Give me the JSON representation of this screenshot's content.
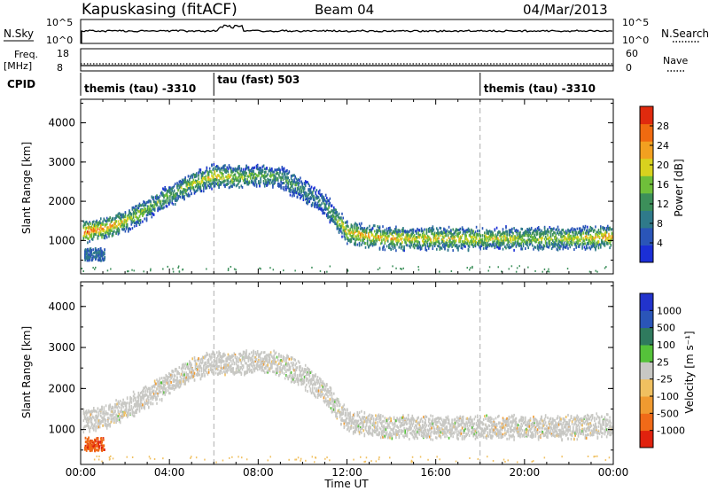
{
  "header": {
    "station": "Kapuskasing (fitACF)",
    "beam": "Beam 04",
    "date": "04/Mar/2013"
  },
  "strip": {
    "nsky_label": "N.Sky",
    "nsky_ticks": [
      "10^5",
      "10^0"
    ],
    "nsearch_label": "N.Search",
    "nsearch_ticks": [
      "10^5",
      "10^0"
    ],
    "freq_label": "Freq.",
    "freq_unit": "[MHz]",
    "freq_ticks": [
      "18",
      "8"
    ],
    "nave_label": "Nave",
    "nave_ticks": [
      "60",
      "0"
    ],
    "cpid_label": "CPID",
    "cpid_segments": [
      {
        "label": "themis (tau) -3310",
        "start": 0.0
      },
      {
        "label": "tau (fast) 503",
        "start": 6.0
      },
      {
        "label": "themis (tau) -3310",
        "start": 18.0
      }
    ]
  },
  "colors": {
    "power_scale": [
      "#1b2fd6",
      "#2a55b8",
      "#2f7a8a",
      "#3c8f5a",
      "#6fbf3a",
      "#d8d21e",
      "#f2a020",
      "#f06a10",
      "#e02a0e"
    ],
    "velocity_scale": [
      "#2233cc",
      "#2a55b8",
      "#2f7a5e",
      "#55c23a",
      "#c8c8c4",
      "#f0c060",
      "#f09a30",
      "#f06a18",
      "#e0220e"
    ]
  },
  "chart_data": [
    {
      "type": "heatmap",
      "title": "Power",
      "ylabel": "Slant Range [km]",
      "xlabel": "Time UT",
      "xlim": [
        0,
        24
      ],
      "ylim": [
        150,
        4600
      ],
      "xticks": [
        "00:00",
        "04:00",
        "08:00",
        "12:00",
        "16:00",
        "20:00",
        "00:00"
      ],
      "yticks": [
        1000,
        2000,
        3000,
        4000
      ],
      "colorbar_label": "Power [dB]",
      "colorbar_ticks": [
        "28",
        "24",
        "20",
        "16",
        "12",
        "8",
        "4"
      ],
      "scatter_band": {
        "time_hours": [
          0.0,
          1.0,
          2.0,
          3.0,
          4.0,
          5.0,
          6.0,
          7.0,
          8.0,
          9.0,
          10.0,
          11.0,
          12.0,
          13.0,
          14.0,
          16.0,
          18.0,
          20.0,
          22.0,
          24.0
        ],
        "center_range_km": [
          1200,
          1300,
          1500,
          1800,
          2150,
          2450,
          2650,
          2600,
          2650,
          2600,
          2300,
          1900,
          1200,
          1100,
          1050,
          1050,
          1050,
          1050,
          1050,
          1100
        ],
        "mean_power_db": [
          24,
          22,
          18,
          14,
          14,
          16,
          18,
          16,
          14,
          12,
          10,
          10,
          20,
          20,
          20,
          18,
          18,
          16,
          16,
          22
        ]
      }
    },
    {
      "type": "heatmap",
      "title": "Velocity",
      "ylabel": "Slant Range [km]",
      "xlabel": "Time UT",
      "xlim": [
        0,
        24
      ],
      "ylim": [
        150,
        4600
      ],
      "xticks": [
        "00:00",
        "04:00",
        "08:00",
        "12:00",
        "16:00",
        "20:00",
        "00:00"
      ],
      "yticks": [
        1000,
        2000,
        3000,
        4000
      ],
      "colorbar_label": "Velocity [m s⁻¹]",
      "colorbar_ticks": [
        "1000",
        "500",
        "100",
        "25",
        "-25",
        "-100",
        "-500",
        "-1000"
      ],
      "scatter_band": {
        "time_hours": [
          0.0,
          1.0,
          2.0,
          3.0,
          4.0,
          5.0,
          6.0,
          7.0,
          8.0,
          9.0,
          10.0,
          11.0,
          12.0,
          13.0,
          14.0,
          16.0,
          18.0,
          20.0,
          22.0,
          24.0
        ],
        "center_range_km": [
          1200,
          1300,
          1500,
          1800,
          2150,
          2450,
          2650,
          2600,
          2650,
          2600,
          2300,
          1900,
          1200,
          1100,
          1050,
          1050,
          1050,
          1050,
          1050,
          1100
        ],
        "mean_velocity_ms": [
          0,
          0,
          0,
          0,
          0,
          0,
          0,
          0,
          0,
          0,
          0,
          0,
          0,
          0,
          0,
          0,
          0,
          0,
          0,
          0
        ]
      }
    }
  ]
}
